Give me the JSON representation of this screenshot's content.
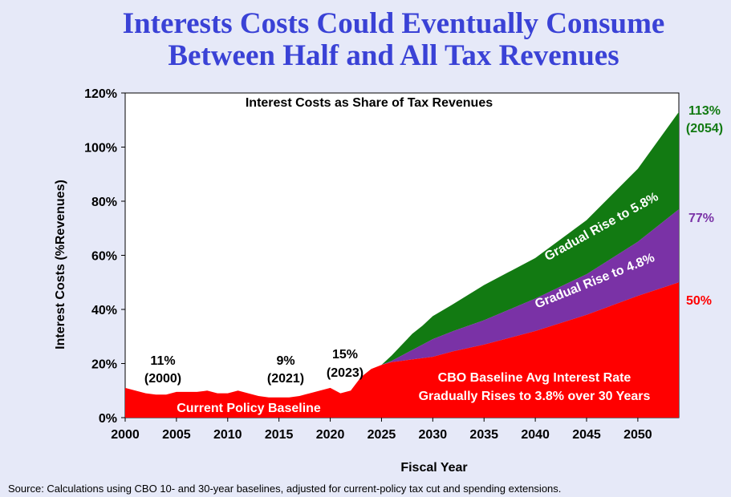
{
  "title_line1": "Interests Costs Could Eventually Consume",
  "title_line2": "Between Half and All Tax Revenues",
  "source": "Source: Calculations using CBO 10- and 30-year baselines, adjusted for current-policy tax cut and spending extensions.",
  "colors": {
    "title": "#3a42d6",
    "red": "#ff0000",
    "purple": "#7a32a6",
    "green": "#127a12",
    "red_label": "#ff0000",
    "purple_label": "#7a32a6",
    "green_label": "#127a12"
  },
  "chart_data": {
    "type": "area",
    "title": "Interest Costs as Share of Tax Revenues",
    "xlabel": "Fiscal Year",
    "ylabel": "Interest Costs (%Revenues)",
    "xlim": [
      2000,
      2054
    ],
    "ylim": [
      0,
      120
    ],
    "x_ticks": [
      "2000",
      "2005",
      "2010",
      "2015",
      "2020",
      "2025",
      "2030",
      "2035",
      "2040",
      "2045",
      "2050"
    ],
    "y_ticks": [
      "0%",
      "20%",
      "40%",
      "60%",
      "80%",
      "100%",
      "120%"
    ],
    "series": [
      {
        "name": "Current Policy Baseline",
        "points": [
          [
            2000,
            11
          ],
          [
            2001,
            10
          ],
          [
            2002,
            9
          ],
          [
            2003,
            8.5
          ],
          [
            2004,
            8.5
          ],
          [
            2005,
            9.5
          ],
          [
            2006,
            9.5
          ],
          [
            2007,
            9.5
          ],
          [
            2008,
            10
          ],
          [
            2009,
            9
          ],
          [
            2010,
            9
          ],
          [
            2011,
            10
          ],
          [
            2012,
            9
          ],
          [
            2013,
            8
          ],
          [
            2014,
            7.5
          ],
          [
            2015,
            7.5
          ],
          [
            2016,
            7.5
          ],
          [
            2017,
            8
          ],
          [
            2018,
            9
          ],
          [
            2019,
            10
          ],
          [
            2020,
            11
          ],
          [
            2021,
            9
          ],
          [
            2022,
            10
          ],
          [
            2023,
            15
          ],
          [
            2024,
            18
          ],
          [
            2025,
            19.5
          ],
          [
            2026,
            20.5
          ],
          [
            2027,
            21
          ],
          [
            2028,
            21.5
          ],
          [
            2029,
            22
          ],
          [
            2030,
            22.5
          ],
          [
            2032,
            24.5
          ],
          [
            2035,
            27
          ],
          [
            2040,
            32
          ],
          [
            2045,
            38
          ],
          [
            2050,
            45
          ],
          [
            2054,
            50
          ]
        ]
      },
      {
        "name": "Gradual Rise to 4.8%",
        "points": [
          [
            2025,
            19.5
          ],
          [
            2026,
            21
          ],
          [
            2027,
            23
          ],
          [
            2028,
            25
          ],
          [
            2029,
            27
          ],
          [
            2030,
            29
          ],
          [
            2032,
            32
          ],
          [
            2035,
            36
          ],
          [
            2040,
            44
          ],
          [
            2045,
            53
          ],
          [
            2050,
            65
          ],
          [
            2054,
            77
          ]
        ]
      },
      {
        "name": "Gradual Rise to 5.8%",
        "points": [
          [
            2025,
            19.5
          ],
          [
            2026,
            23
          ],
          [
            2027,
            27
          ],
          [
            2028,
            31
          ],
          [
            2029,
            34
          ],
          [
            2030,
            37.5
          ],
          [
            2032,
            42
          ],
          [
            2035,
            49
          ],
          [
            2040,
            59
          ],
          [
            2045,
            73
          ],
          [
            2050,
            92
          ],
          [
            2054,
            113
          ]
        ]
      }
    ],
    "annotations": {
      "a2000_pct": "11%",
      "a2000_year": "(2000)",
      "a2021_pct": "9%",
      "a2021_year": "(2021)",
      "a2023_pct": "15%",
      "a2023_year": "(2023)",
      "current_policy": "Current Policy Baseline",
      "cbo_line1": "CBO Baseline Avg Interest Rate",
      "cbo_line2": "Gradually Rises to 3.8% over 30 Years",
      "rise48": "Gradual Rise to 4.8%",
      "rise58": "Gradual Rise to 5.8%",
      "end_green_pct": "113%",
      "end_green_year": "(2054)",
      "end_purple": "77%",
      "end_red": "50%"
    }
  }
}
